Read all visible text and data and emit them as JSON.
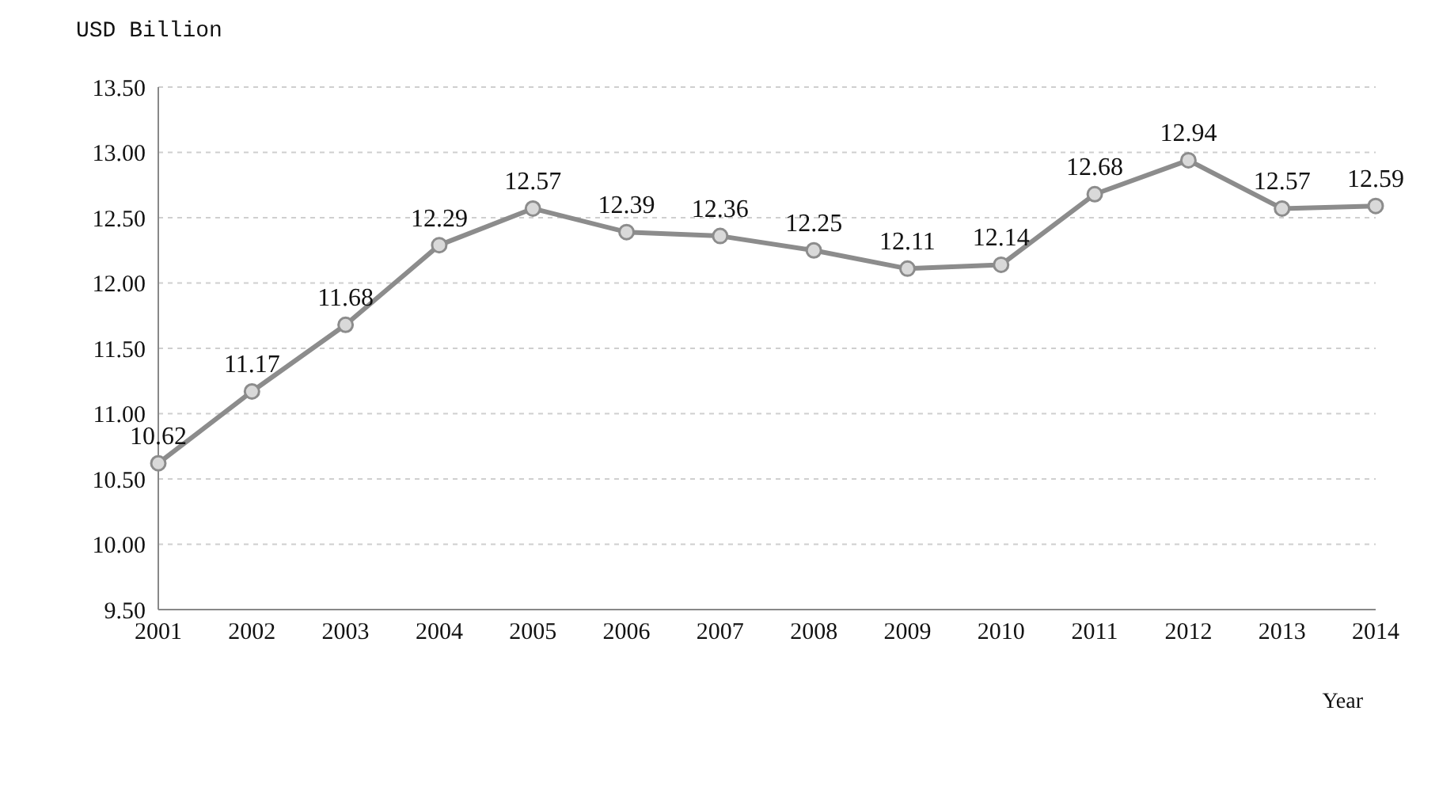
{
  "chart_data": {
    "type": "line",
    "ylabel": "USD Billion",
    "xlabel": "Year",
    "categories": [
      "2001",
      "2002",
      "2003",
      "2004",
      "2005",
      "2006",
      "2007",
      "2008",
      "2009",
      "2010",
      "2011",
      "2012",
      "2013",
      "2014"
    ],
    "series": [
      {
        "color": "#8c8c8c",
        "values": [
          10.62,
          11.17,
          11.68,
          12.29,
          12.57,
          12.39,
          12.36,
          12.25,
          12.11,
          12.14,
          12.68,
          12.94,
          12.57,
          12.59
        ]
      }
    ],
    "ylim": [
      9.5,
      13.5
    ],
    "yticks": [
      {
        "value": 9.5,
        "label": "9.50"
      },
      {
        "value": 10,
        "label": "10.00"
      },
      {
        "value": 10.5,
        "label": "10.50"
      },
      {
        "value": 11,
        "label": "11.00"
      },
      {
        "value": 11.5,
        "label": "11.50"
      },
      {
        "value": 12,
        "label": "12.00"
      },
      {
        "value": 12.5,
        "label": "12.50"
      },
      {
        "value": 13,
        "label": "13.00"
      },
      {
        "value": 13.5,
        "label": "13.50"
      }
    ],
    "grid": "y",
    "marker": "circle",
    "data_labels": true
  }
}
